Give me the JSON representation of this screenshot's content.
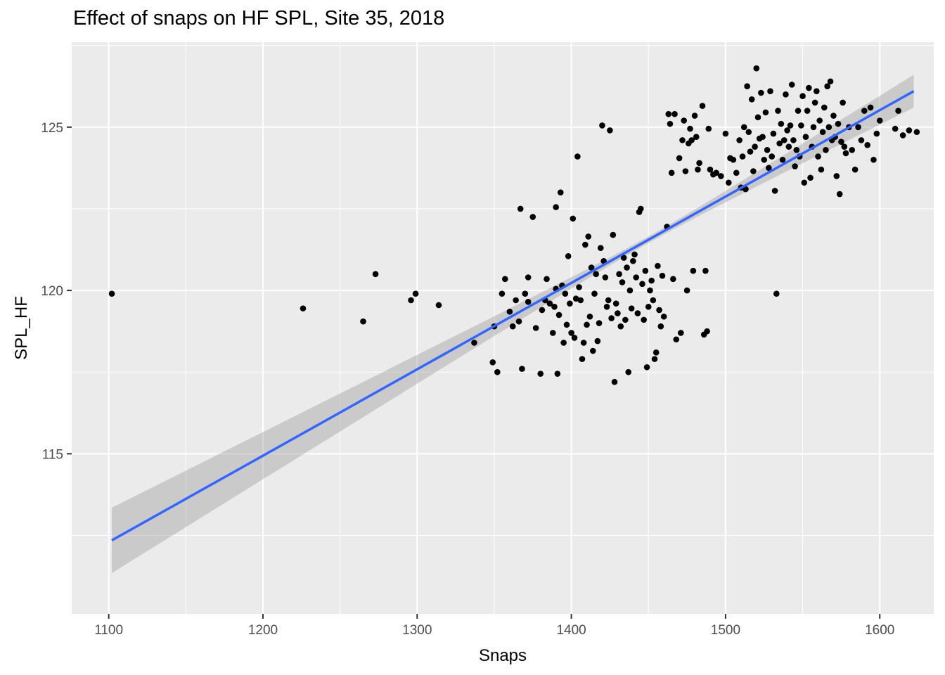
{
  "chart_data": {
    "type": "scatter",
    "title": "Effect of snaps on HF SPL, Site 35, 2018",
    "xlabel": "Snaps",
    "ylabel": "SPL_HF",
    "xlim": [
      1076,
      1635
    ],
    "ylim": [
      110.1,
      127.6
    ],
    "x_ticks": [
      1100,
      1200,
      1300,
      1400,
      1500,
      1600
    ],
    "y_ticks": [
      115,
      120,
      125
    ],
    "grid": true,
    "panel_background": "#ebebeb",
    "point_color": "#000000",
    "fit_line": {
      "method": "linear",
      "color": "#3366ff",
      "band_color": "#999999",
      "x": [
        1102,
        1622
      ],
      "y": [
        112.35,
        126.1
      ],
      "ci_lower": [
        111.35,
        125.6
      ],
      "ci_upper": [
        113.35,
        126.6
      ],
      "ci_center_x": 1450
    },
    "points": [
      [
        1102,
        119.9
      ],
      [
        1226,
        119.45
      ],
      [
        1265,
        119.05
      ],
      [
        1273,
        120.5
      ],
      [
        1296,
        119.7
      ],
      [
        1299,
        119.9
      ],
      [
        1314,
        119.55
      ],
      [
        1337,
        118.4
      ],
      [
        1349,
        117.8
      ],
      [
        1350,
        118.9
      ],
      [
        1352,
        117.5
      ],
      [
        1355,
        119.9
      ],
      [
        1357,
        120.35
      ],
      [
        1360,
        119.35
      ],
      [
        1362,
        118.9
      ],
      [
        1364,
        119.7
      ],
      [
        1366,
        119.05
      ],
      [
        1367,
        122.5
      ],
      [
        1368,
        117.6
      ],
      [
        1370,
        119.9
      ],
      [
        1372,
        120.4
      ],
      [
        1372,
        119.65
      ],
      [
        1375,
        122.25
      ],
      [
        1377,
        118.85
      ],
      [
        1380,
        117.45
      ],
      [
        1381,
        119.4
      ],
      [
        1383,
        119.7
      ],
      [
        1384,
        120.35
      ],
      [
        1386,
        119.6
      ],
      [
        1388,
        118.7
      ],
      [
        1389,
        119.5
      ],
      [
        1390,
        122.55
      ],
      [
        1390,
        120.05
      ],
      [
        1391,
        117.45
      ],
      [
        1392,
        119.25
      ],
      [
        1393,
        123.0
      ],
      [
        1394,
        120.15
      ],
      [
        1395,
        118.4
      ],
      [
        1396,
        119.9
      ],
      [
        1397,
        118.95
      ],
      [
        1398,
        121.05
      ],
      [
        1399,
        119.6
      ],
      [
        1400,
        118.7
      ],
      [
        1401,
        122.2
      ],
      [
        1402,
        118.55
      ],
      [
        1403,
        119.75
      ],
      [
        1404,
        124.1
      ],
      [
        1405,
        120.1
      ],
      [
        1406,
        119.7
      ],
      [
        1407,
        117.9
      ],
      [
        1408,
        118.4
      ],
      [
        1409,
        121.4
      ],
      [
        1410,
        118.95
      ],
      [
        1411,
        121.65
      ],
      [
        1412,
        119.2
      ],
      [
        1413,
        120.7
      ],
      [
        1414,
        118.15
      ],
      [
        1415,
        119.9
      ],
      [
        1416,
        120.5
      ],
      [
        1417,
        118.45
      ],
      [
        1418,
        119.0
      ],
      [
        1419,
        121.3
      ],
      [
        1420,
        125.05
      ],
      [
        1421,
        120.9
      ],
      [
        1422,
        120.4
      ],
      [
        1423,
        119.5
      ],
      [
        1424,
        119.7
      ],
      [
        1425,
        124.9
      ],
      [
        1426,
        119.15
      ],
      [
        1427,
        121.7
      ],
      [
        1428,
        117.2
      ],
      [
        1429,
        119.6
      ],
      [
        1430,
        119.3
      ],
      [
        1431,
        120.5
      ],
      [
        1432,
        118.9
      ],
      [
        1433,
        120.25
      ],
      [
        1434,
        121.0
      ],
      [
        1435,
        119.1
      ],
      [
        1436,
        120.7
      ],
      [
        1437,
        117.5
      ],
      [
        1438,
        120.0
      ],
      [
        1439,
        119.45
      ],
      [
        1440,
        120.9
      ],
      [
        1441,
        121.1
      ],
      [
        1442,
        120.4
      ],
      [
        1443,
        119.3
      ],
      [
        1444,
        122.4
      ],
      [
        1445,
        122.5
      ],
      [
        1446,
        120.2
      ],
      [
        1447,
        119.1
      ],
      [
        1448,
        120.6
      ],
      [
        1449,
        117.65
      ],
      [
        1450,
        119.5
      ],
      [
        1451,
        120.0
      ],
      [
        1452,
        120.3
      ],
      [
        1453,
        119.7
      ],
      [
        1454,
        117.9
      ],
      [
        1455,
        118.1
      ],
      [
        1456,
        120.75
      ],
      [
        1457,
        119.4
      ],
      [
        1458,
        118.9
      ],
      [
        1459,
        120.45
      ],
      [
        1460,
        119.2
      ],
      [
        1462,
        121.95
      ],
      [
        1463,
        125.4
      ],
      [
        1464,
        125.1
      ],
      [
        1465,
        123.6
      ],
      [
        1466,
        120.35
      ],
      [
        1467,
        125.4
      ],
      [
        1468,
        118.5
      ],
      [
        1470,
        124.05
      ],
      [
        1471,
        118.7
      ],
      [
        1472,
        124.6
      ],
      [
        1473,
        125.2
      ],
      [
        1474,
        123.65
      ],
      [
        1475,
        120.0
      ],
      [
        1476,
        124.5
      ],
      [
        1477,
        124.95
      ],
      [
        1478,
        124.6
      ],
      [
        1479,
        120.6
      ],
      [
        1480,
        125.35
      ],
      [
        1481,
        124.7
      ],
      [
        1482,
        123.7
      ],
      [
        1483,
        123.9
      ],
      [
        1485,
        125.65
      ],
      [
        1486,
        118.65
      ],
      [
        1487,
        120.6
      ],
      [
        1488,
        118.75
      ],
      [
        1489,
        124.95
      ],
      [
        1490,
        123.7
      ],
      [
        1492,
        123.55
      ],
      [
        1494,
        123.6
      ],
      [
        1497,
        123.5
      ],
      [
        1500,
        124.8
      ],
      [
        1502,
        123.3
      ],
      [
        1503,
        124.05
      ],
      [
        1505,
        124.0
      ],
      [
        1507,
        123.6
      ],
      [
        1509,
        124.6
      ],
      [
        1510,
        123.15
      ],
      [
        1511,
        124.1
      ],
      [
        1512,
        125.0
      ],
      [
        1513,
        123.1
      ],
      [
        1514,
        126.25
      ],
      [
        1515,
        124.85
      ],
      [
        1516,
        124.25
      ],
      [
        1517,
        125.85
      ],
      [
        1518,
        123.65
      ],
      [
        1519,
        124.4
      ],
      [
        1520,
        126.8
      ],
      [
        1521,
        125.3
      ],
      [
        1522,
        124.65
      ],
      [
        1523,
        126.05
      ],
      [
        1524,
        124.7
      ],
      [
        1525,
        124.0
      ],
      [
        1526,
        125.45
      ],
      [
        1527,
        124.3
      ],
      [
        1528,
        123.75
      ],
      [
        1529,
        126.1
      ],
      [
        1530,
        124.1
      ],
      [
        1531,
        124.8
      ],
      [
        1532,
        123.05
      ],
      [
        1533,
        119.9
      ],
      [
        1534,
        125.5
      ],
      [
        1535,
        124.5
      ],
      [
        1536,
        125.1
      ],
      [
        1537,
        124.0
      ],
      [
        1538,
        124.6
      ],
      [
        1539,
        126.0
      ],
      [
        1540,
        124.9
      ],
      [
        1541,
        124.4
      ],
      [
        1542,
        125.05
      ],
      [
        1543,
        126.3
      ],
      [
        1544,
        124.6
      ],
      [
        1545,
        123.8
      ],
      [
        1546,
        124.3
      ],
      [
        1547,
        125.5
      ],
      [
        1548,
        124.1
      ],
      [
        1549,
        125.05
      ],
      [
        1550,
        125.95
      ],
      [
        1551,
        123.3
      ],
      [
        1552,
        124.7
      ],
      [
        1553,
        125.5
      ],
      [
        1554,
        126.2
      ],
      [
        1555,
        123.45
      ],
      [
        1556,
        124.4
      ],
      [
        1557,
        125.0
      ],
      [
        1558,
        125.75
      ],
      [
        1559,
        126.1
      ],
      [
        1560,
        124.1
      ],
      [
        1561,
        125.2
      ],
      [
        1562,
        123.7
      ],
      [
        1563,
        124.85
      ],
      [
        1564,
        125.6
      ],
      [
        1565,
        124.3
      ],
      [
        1566,
        126.25
      ],
      [
        1567,
        125.0
      ],
      [
        1568,
        126.4
      ],
      [
        1569,
        124.6
      ],
      [
        1570,
        125.35
      ],
      [
        1571,
        124.7
      ],
      [
        1572,
        123.5
      ],
      [
        1573,
        125.1
      ],
      [
        1574,
        122.95
      ],
      [
        1575,
        124.55
      ],
      [
        1576,
        125.75
      ],
      [
        1577,
        124.4
      ],
      [
        1578,
        124.2
      ],
      [
        1580,
        125.0
      ],
      [
        1582,
        124.3
      ],
      [
        1584,
        123.7
      ],
      [
        1586,
        125.0
      ],
      [
        1588,
        124.6
      ],
      [
        1590,
        125.5
      ],
      [
        1592,
        124.45
      ],
      [
        1594,
        125.6
      ],
      [
        1596,
        124.0
      ],
      [
        1598,
        124.8
      ],
      [
        1600,
        125.2
      ],
      [
        1610,
        124.95
      ],
      [
        1612,
        125.5
      ],
      [
        1615,
        124.75
      ],
      [
        1619,
        124.9
      ],
      [
        1624,
        124.85
      ]
    ]
  }
}
